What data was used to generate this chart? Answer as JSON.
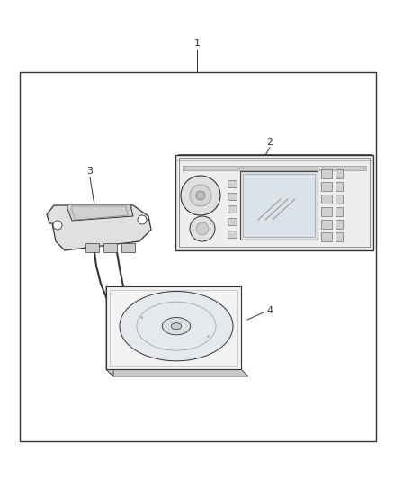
{
  "bg_color": "#ffffff",
  "border_color": "#333333",
  "border_lw": 1.0,
  "fig_width": 4.38,
  "fig_height": 5.33,
  "label1": "1",
  "label2": "2",
  "label3": "3",
  "label4": "4",
  "line_color": "#333333",
  "line_lw": 0.7,
  "text_color": "#333333",
  "text_fontsize": 8
}
